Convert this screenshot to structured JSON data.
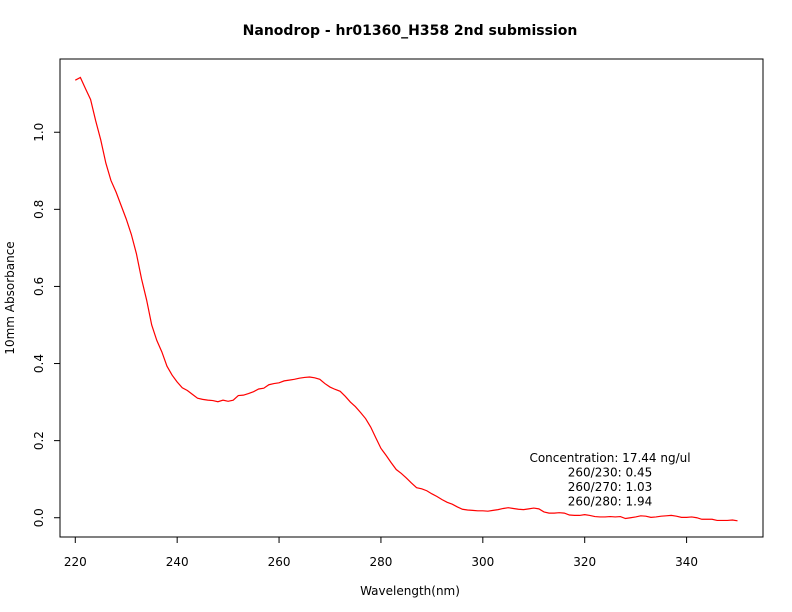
{
  "chart_data": {
    "type": "line",
    "title": "Nanodrop - hr01360_H358 2nd submission",
    "xlabel": "Wavelength(nm)",
    "ylabel": "10mm Absorbance",
    "xlim": [
      217,
      355
    ],
    "ylim": [
      -0.05,
      1.19
    ],
    "xticks": [
      220,
      240,
      260,
      280,
      300,
      320,
      340
    ],
    "yticks": [
      0.0,
      0.2,
      0.4,
      0.6,
      0.8,
      1.0
    ],
    "xtick_labels": [
      "220",
      "240",
      "260",
      "280",
      "300",
      "320",
      "340"
    ],
    "ytick_labels": [
      "0.0",
      "0.2",
      "0.4",
      "0.6",
      "0.8",
      "1.0"
    ],
    "grid": false,
    "line_color": "#ff0000",
    "series": [
      {
        "x": [
          220,
          221,
          222,
          223,
          224,
          225,
          226,
          227,
          228,
          229,
          230,
          231,
          232,
          233,
          234,
          235,
          236,
          237,
          238,
          239,
          240,
          241,
          242,
          243,
          244,
          245,
          246,
          247,
          248,
          249,
          250,
          251,
          252,
          253,
          254,
          255,
          256,
          257,
          258,
          259,
          260,
          261,
          262,
          263,
          264,
          265,
          266,
          267,
          268,
          269,
          270,
          271,
          272,
          273,
          274,
          275,
          276,
          277,
          278,
          279,
          280,
          281,
          282,
          283,
          284,
          285,
          286,
          287,
          288,
          289,
          290,
          291,
          292,
          293,
          294,
          295,
          296,
          297,
          298,
          299,
          300,
          301,
          302,
          303,
          304,
          305,
          306,
          307,
          308,
          309,
          310,
          311,
          312,
          313,
          314,
          315,
          316,
          317,
          318,
          319,
          320,
          321,
          322,
          323,
          324,
          325,
          326,
          327,
          328,
          329,
          330,
          331,
          332,
          333,
          334,
          335,
          336,
          337,
          338,
          339,
          340,
          341,
          342,
          343,
          344,
          345,
          346,
          347,
          348,
          349,
          350
        ],
        "values": [
          1.135,
          1.142,
          1.113,
          1.085,
          1.03,
          0.98,
          0.92,
          0.875,
          0.845,
          0.81,
          0.775,
          0.735,
          0.685,
          0.62,
          0.565,
          0.5,
          0.46,
          0.43,
          0.393,
          0.37,
          0.352,
          0.337,
          0.33,
          0.32,
          0.31,
          0.307,
          0.305,
          0.304,
          0.301,
          0.305,
          0.302,
          0.305,
          0.317,
          0.318,
          0.322,
          0.327,
          0.334,
          0.336,
          0.345,
          0.348,
          0.35,
          0.355,
          0.357,
          0.359,
          0.362,
          0.364,
          0.365,
          0.363,
          0.359,
          0.348,
          0.339,
          0.333,
          0.328,
          0.315,
          0.3,
          0.288,
          0.273,
          0.257,
          0.235,
          0.207,
          0.18,
          0.162,
          0.143,
          0.125,
          0.115,
          0.103,
          0.09,
          0.078,
          0.075,
          0.07,
          0.062,
          0.055,
          0.047,
          0.04,
          0.035,
          0.028,
          0.022,
          0.02,
          0.019,
          0.018,
          0.018,
          0.017,
          0.019,
          0.021,
          0.024,
          0.026,
          0.024,
          0.022,
          0.021,
          0.023,
          0.025,
          0.023,
          0.015,
          0.012,
          0.012,
          0.013,
          0.012,
          0.007,
          0.006,
          0.006,
          0.008,
          0.006,
          0.003,
          0.002,
          0.002,
          0.003,
          0.002,
          0.003,
          -0.002,
          0.0,
          0.002,
          0.005,
          0.004,
          0.001,
          0.002,
          0.004,
          0.005,
          0.006,
          0.004,
          0.001,
          0.001,
          0.002,
          0.0,
          -0.004,
          -0.004,
          -0.004,
          -0.007,
          -0.007,
          -0.007,
          -0.006,
          -0.008
        ]
      }
    ],
    "annotations": [
      "Concentration: 17.44 ng/ul",
      "260/230: 0.45",
      "260/270: 1.03",
      "260/280: 1.94"
    ]
  }
}
